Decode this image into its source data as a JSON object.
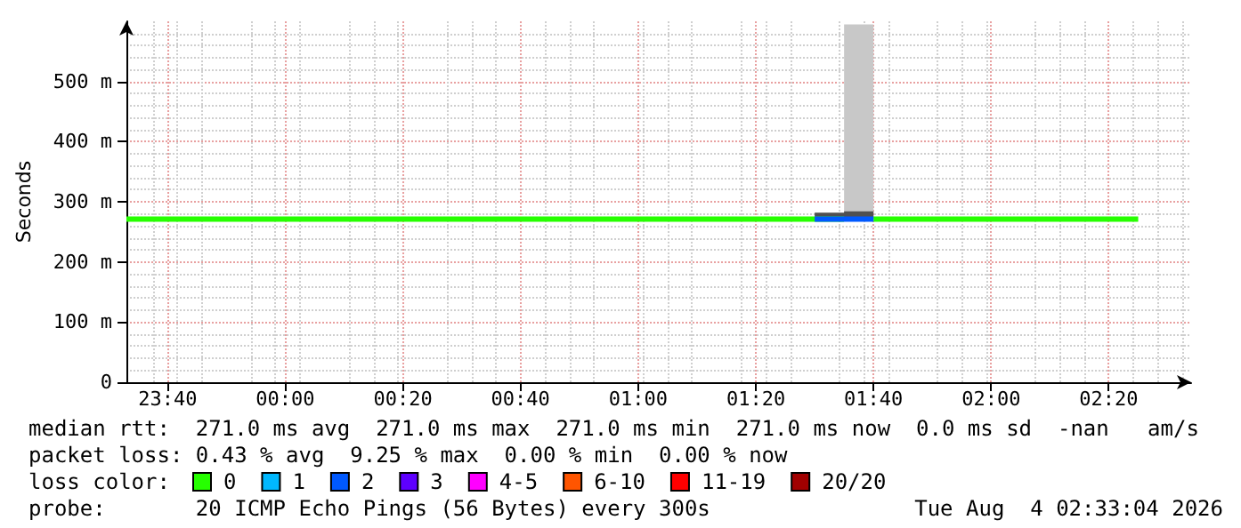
{
  "chart_data": {
    "type": "step",
    "ylabel": "Seconds",
    "legend_title": "loss color:",
    "legend": "bottom",
    "grid": true,
    "line_style": "solid",
    "marker": "none",
    "xlim": [
      "2026-08-03T23:33",
      "2026-08-04T02:34"
    ],
    "xticks": [
      {
        "value": "2026-08-03T23:40",
        "label": "23:40"
      },
      {
        "value": "2026-08-04T00:00",
        "label": "00:00"
      },
      {
        "value": "2026-08-04T00:20",
        "label": "00:20"
      },
      {
        "value": "2026-08-04T00:40",
        "label": "00:40"
      },
      {
        "value": "2026-08-04T01:00",
        "label": "01:00"
      },
      {
        "value": "2026-08-04T01:20",
        "label": "01:20"
      },
      {
        "value": "2026-08-04T01:40",
        "label": "01:40"
      },
      {
        "value": "2026-08-04T02:00",
        "label": "02:00"
      },
      {
        "value": "2026-08-04T02:20",
        "label": "02:20"
      }
    ],
    "ylim": [
      0,
      600
    ],
    "yticks": [
      0,
      {
        "value": 100,
        "label": "100 m"
      },
      {
        "value": 200,
        "label": "200 m"
      },
      {
        "value": 300,
        "label": "300 m"
      },
      {
        "value": 400,
        "label": "400 m"
      },
      {
        "value": 500,
        "label": "500 m"
      }
    ],
    "series": [
      {
        "type": "area",
        "color": "#c8c8c8",
        "x": [
          "2026-08-04T01:35",
          "2026-08-04T01:40"
        ],
        "values": [
          595,
          595
        ]
      },
      {
        "type": "area",
        "color": "#505050",
        "x": [
          "2026-08-04T01:30",
          "2026-08-04T01:35",
          "2026-08-04T01:40"
        ],
        "values": [
          282,
          284,
          284
        ]
      },
      {
        "name": "0",
        "color": "#26ff00",
        "x": [
          "2026-08-03T23:33",
          "2026-08-04T01:30",
          "2026-08-04T01:35",
          "2026-08-04T01:40",
          "2026-08-04T02:25"
        ],
        "values": [
          271,
          271,
          null,
          271,
          271
        ]
      },
      {
        "name": "1",
        "color": "#00b8ff"
      },
      {
        "name": "2",
        "color": "#0059ff",
        "x": [
          "2026-08-04T01:30",
          "2026-08-04T01:40"
        ],
        "values": [
          271,
          271
        ]
      },
      {
        "name": "3",
        "color": "#5e00ff"
      },
      {
        "name": "4-5",
        "color": "#ff00ff"
      },
      {
        "name": "6-10",
        "color": "#ff5500"
      },
      {
        "name": "11-19",
        "color": "#ff0000"
      },
      {
        "name": "20/20",
        "color": "#a10000"
      }
    ],
    "annotations": [
      "median rtt:  271.0 ms avg  271.0 ms max  271.0 ms min  271.0 ms now  0.0 ms sd  -nan   am/s",
      "packet loss: 0.43 % avg  9.25 % max  0.00 % min  0.00 % now",
      "probe:       20 ICMP Echo Pings (56 Bytes) every 300s",
      "Tue Aug  4 02:33:04 2026"
    ]
  }
}
